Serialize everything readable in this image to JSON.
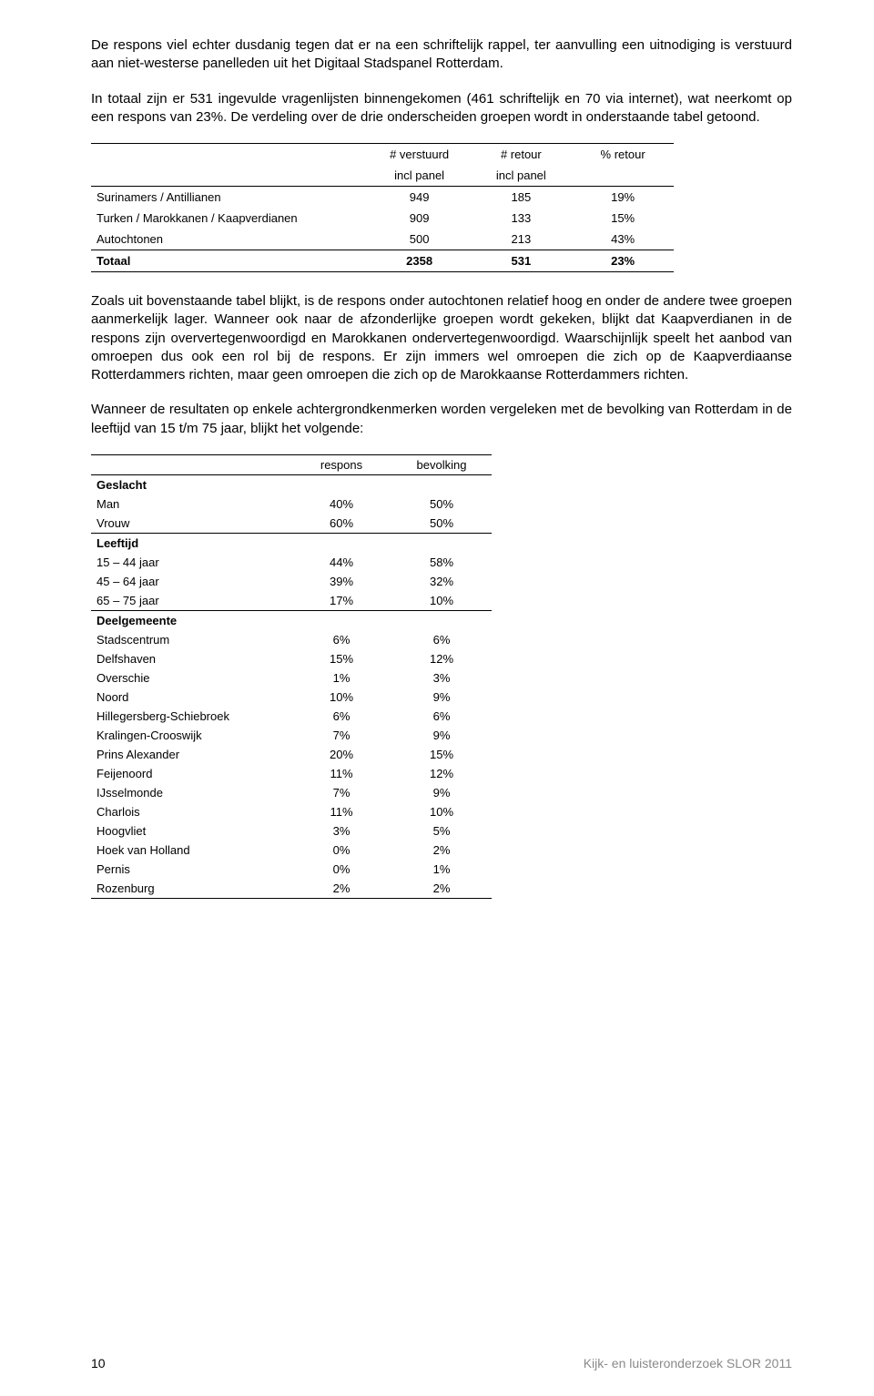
{
  "paragraphs": {
    "p1": "De respons viel echter dusdanig tegen dat er na een schriftelijk rappel, ter aanvulling een uitnodiging is verstuurd aan niet-westerse panelleden uit het Digitaal Stadspanel Rotterdam.",
    "p2": "In totaal zijn er 531 ingevulde vragenlijsten binnengekomen (461 schriftelijk en 70 via internet), wat neerkomt op een respons van 23%. De verdeling over de drie onderscheiden groepen wordt in onderstaande tabel getoond.",
    "p3": "Zoals uit bovenstaande tabel blijkt, is de respons onder autochtonen relatief hoog en onder de andere twee groepen aanmerkelijk lager. Wanneer ook naar de afzonderlijke groepen wordt gekeken, blijkt dat Kaapverdianen in de respons zijn oververtegenwoordigd en Marokkanen ondervertegenwoordigd. Waarschijnlijk speelt het aanbod van omroepen dus ook een rol bij de respons. Er zijn immers wel omroepen die zich op de Kaapverdiaanse Rotterdammers richten, maar geen omroepen die zich op de Marokkaanse Rotterdammers richten.",
    "p4": "Wanneer de resultaten op enkele achtergrondkenmerken worden vergeleken met de bevolking van Rotterdam in de leeftijd van 15 t/m 75 jaar, blijkt het volgende:"
  },
  "table1": {
    "header_top": {
      "c1": "# verstuurd",
      "c2": "# retour",
      "c3": "% retour"
    },
    "header_sub": {
      "c1": "incl panel",
      "c2": "incl panel",
      "c3": ""
    },
    "rows": [
      {
        "label": "Surinamers / Antillianen",
        "c1": "949",
        "c2": "185",
        "c3": "19%"
      },
      {
        "label": "Turken / Marokkanen / Kaapverdianen",
        "c1": "909",
        "c2": "133",
        "c3": "15%"
      },
      {
        "label": "Autochtonen",
        "c1": "500",
        "c2": "213",
        "c3": "43%"
      }
    ],
    "total": {
      "label": "Totaal",
      "c1": "2358",
      "c2": "531",
      "c3": "23%"
    }
  },
  "table2": {
    "header": {
      "c1": "respons",
      "c2": "bevolking"
    },
    "sections": [
      {
        "title": "Geslacht",
        "rows": [
          {
            "label": "Man",
            "c1": "40%",
            "c2": "50%"
          },
          {
            "label": "Vrouw",
            "c1": "60%",
            "c2": "50%"
          }
        ]
      },
      {
        "title": "Leeftijd",
        "rows": [
          {
            "label": "15 – 44 jaar",
            "c1": "44%",
            "c2": "58%"
          },
          {
            "label": "45 – 64 jaar",
            "c1": "39%",
            "c2": "32%"
          },
          {
            "label": "65 – 75 jaar",
            "c1": "17%",
            "c2": "10%"
          }
        ]
      },
      {
        "title": "Deelgemeente",
        "rows": [
          {
            "label": "Stadscentrum",
            "c1": "6%",
            "c2": "6%"
          },
          {
            "label": "Delfshaven",
            "c1": "15%",
            "c2": "12%"
          },
          {
            "label": "Overschie",
            "c1": "1%",
            "c2": "3%"
          },
          {
            "label": "Noord",
            "c1": "10%",
            "c2": "9%"
          },
          {
            "label": "Hillegersberg-Schiebroek",
            "c1": "6%",
            "c2": "6%"
          },
          {
            "label": "Kralingen-Crooswijk",
            "c1": "7%",
            "c2": "9%"
          },
          {
            "label": "Prins Alexander",
            "c1": "20%",
            "c2": "15%"
          },
          {
            "label": "Feijenoord",
            "c1": "11%",
            "c2": "12%"
          },
          {
            "label": "IJsselmonde",
            "c1": "7%",
            "c2": "9%"
          },
          {
            "label": "Charlois",
            "c1": "11%",
            "c2": "10%"
          },
          {
            "label": "Hoogvliet",
            "c1": "3%",
            "c2": "5%"
          },
          {
            "label": "Hoek van Holland",
            "c1": "0%",
            "c2": "2%"
          },
          {
            "label": "Pernis",
            "c1": "0%",
            "c2": "1%"
          },
          {
            "label": "Rozenburg",
            "c1": "2%",
            "c2": "2%"
          }
        ]
      }
    ]
  },
  "footer": {
    "page_number": "10",
    "doc_title": "Kijk- en luisteronderzoek SLOR 2011"
  }
}
